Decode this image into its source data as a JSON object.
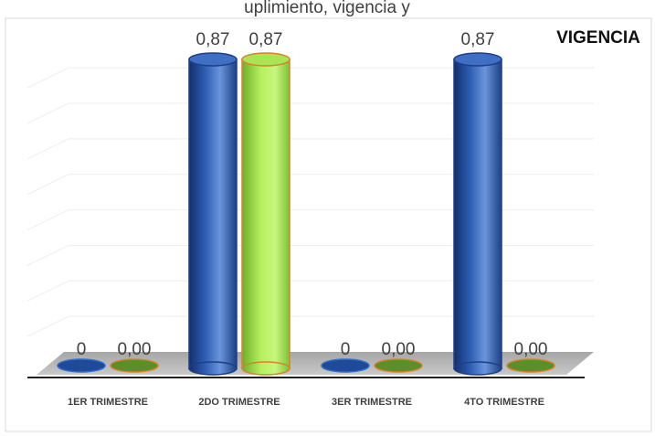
{
  "top_text": "uplimiento, vigencia y",
  "legend_label": "VIGENCIA",
  "chart_data": {
    "type": "bar",
    "categories": [
      "1ER TRIMESTRE",
      "2DO TRIMESTRE",
      "3ER TRIMESTRE",
      "4TO TRIMESTRE"
    ],
    "series": [
      {
        "values": [
          0,
          0.87,
          0,
          0.87
        ],
        "labels": [
          "0",
          "0,87",
          "0",
          "0,87"
        ],
        "color": "#2f5fb5"
      },
      {
        "values": [
          0,
          0.87,
          0,
          0
        ],
        "labels": [
          "0,00",
          "0,87",
          "0,00",
          "0,00"
        ],
        "color": "#8fd43b",
        "edge_color": "#d9822b"
      }
    ],
    "ylim": [
      0,
      1
    ],
    "grid": true,
    "legend_position": "top-right"
  }
}
